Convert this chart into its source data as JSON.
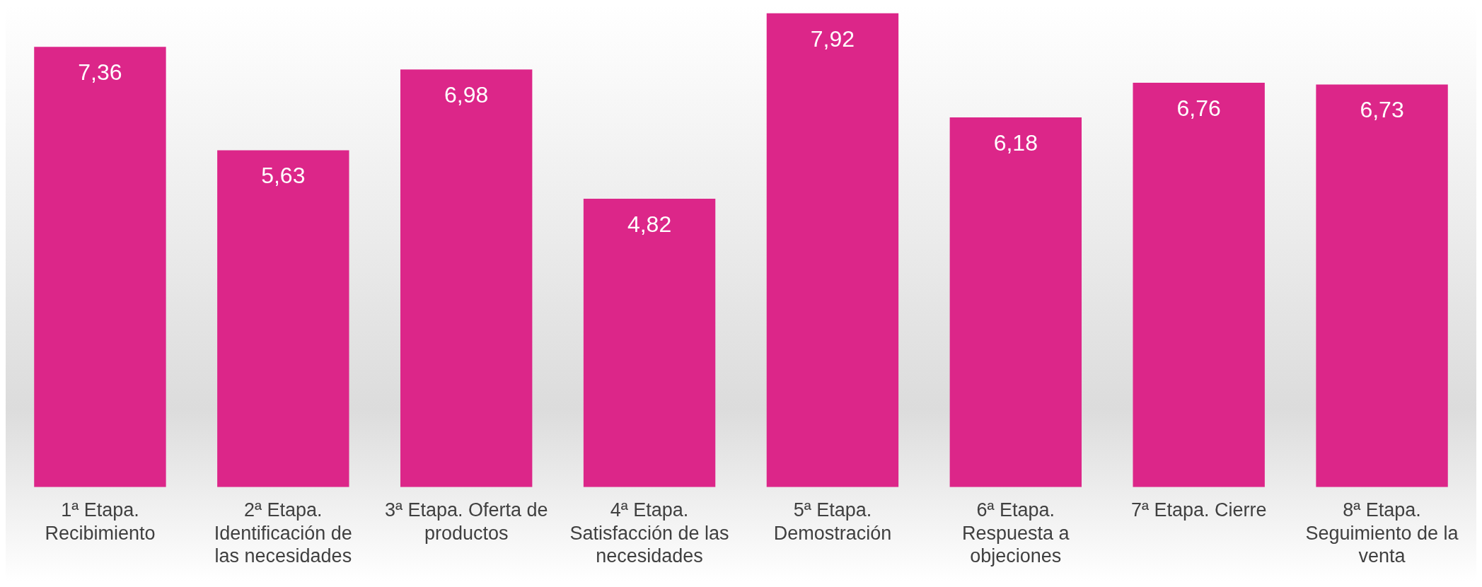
{
  "chart_data": {
    "type": "bar",
    "categories": [
      "1ª Etapa. Recibimiento",
      "2ª Etapa. Identificación de las necesidades",
      "3ª Etapa. Oferta de productos",
      "4ª Etapa. Satisfacción de las necesidades",
      "5ª Etapa. Demostración",
      "6ª Etapa. Respuesta a objeciones",
      "7ª Etapa. Cierre",
      "8ª Etapa. Seguimiento de la venta"
    ],
    "values": [
      7.36,
      5.63,
      6.98,
      4.82,
      7.92,
      6.18,
      6.76,
      6.73
    ],
    "value_labels": [
      "7,36",
      "5,63",
      "6,98",
      "4,82",
      "7,92",
      "6,18",
      "6,76",
      "6,73"
    ],
    "color": "#dc2689",
    "tick_labels": "x",
    "grid": false,
    "legend": false
  }
}
